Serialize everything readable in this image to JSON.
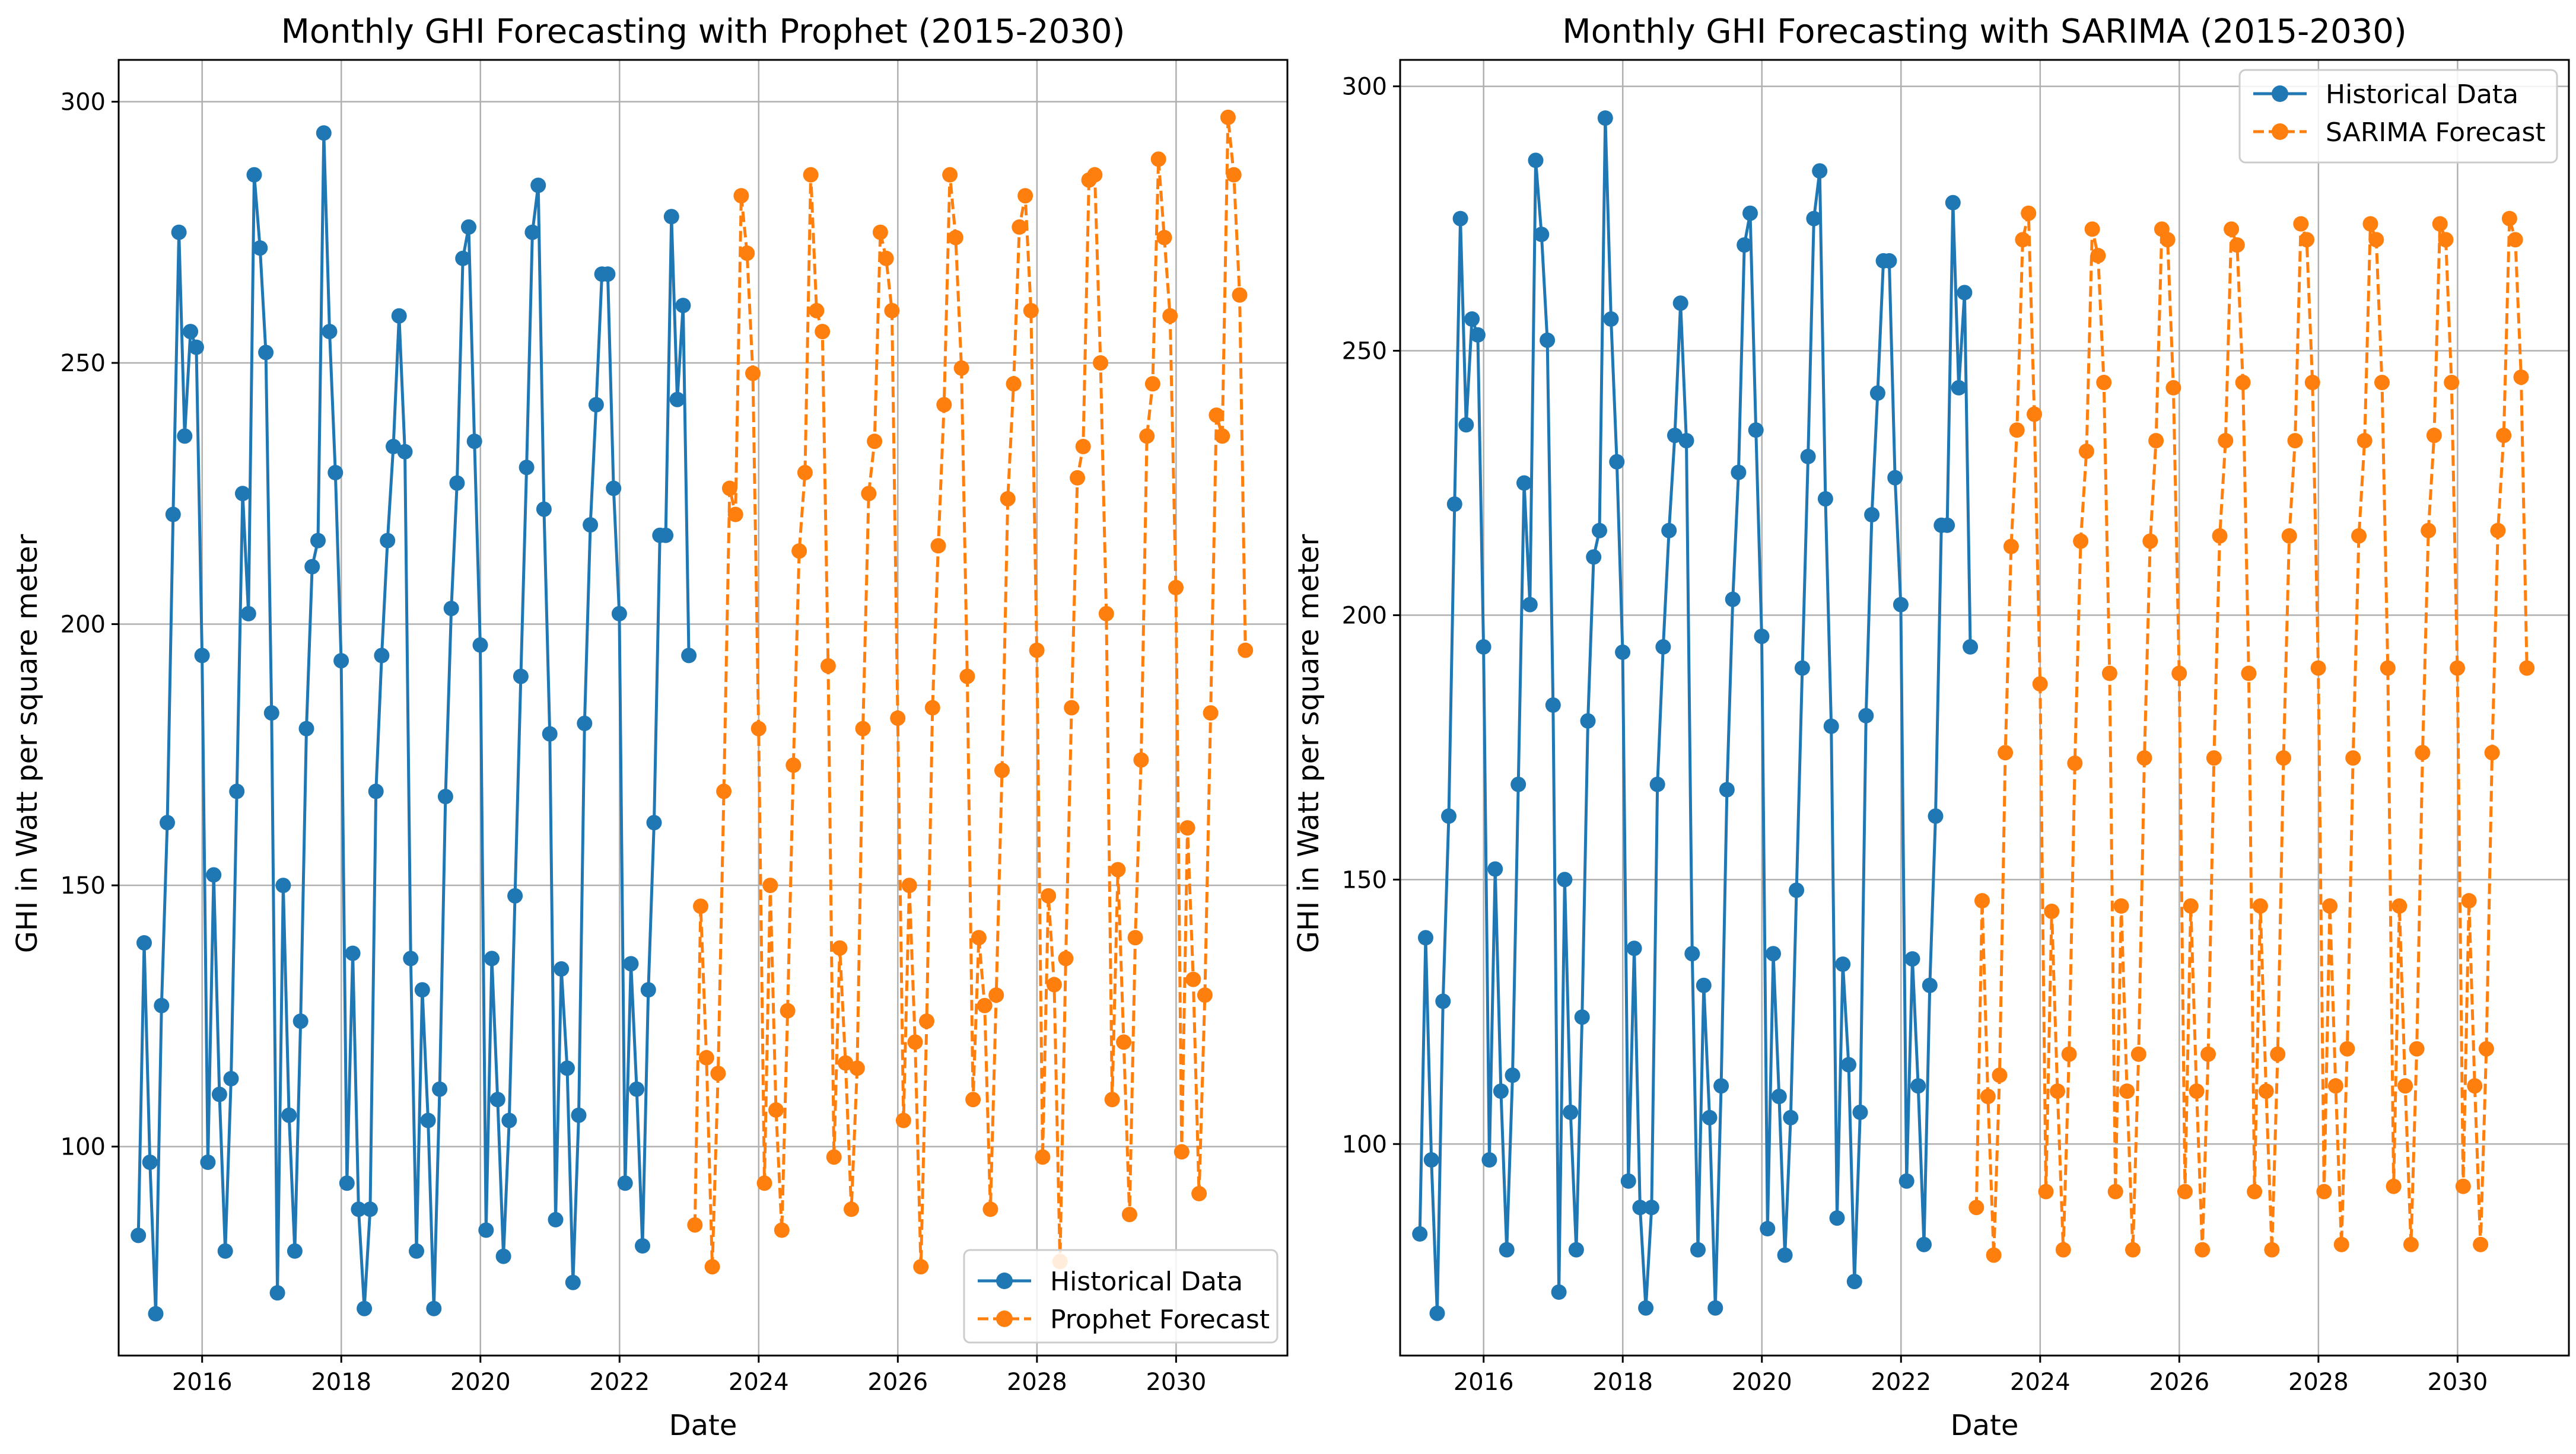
{
  "chart_data": [
    {
      "type": "line",
      "title": "Monthly GHI Forecasting with Prophet (2015-2030)",
      "xlabel": "Date",
      "ylabel": "GHI in Watt per square meter",
      "xlim": [
        2014.8,
        2031.6
      ],
      "ylim": [
        60,
        308
      ],
      "xticks": [
        2016,
        2018,
        2020,
        2022,
        2024,
        2026,
        2028,
        2030
      ],
      "yticks": [
        100,
        150,
        200,
        250,
        300
      ],
      "grid": true,
      "legend_position": "lower-right",
      "series": [
        {
          "name": "Historical Data",
          "style": "solid",
          "color": "#1f77b4",
          "start_year": 2015.083,
          "step": 0.0833,
          "values": [
            83,
            139,
            97,
            68,
            127,
            162,
            221,
            275,
            236,
            256,
            253,
            194,
            97,
            152,
            110,
            80,
            113,
            168,
            225,
            202,
            286,
            272,
            252,
            183,
            72,
            150,
            106,
            80,
            124,
            180,
            211,
            216,
            294,
            256,
            229,
            193,
            93,
            137,
            88,
            69,
            88,
            168,
            194,
            216,
            234,
            259,
            233,
            136,
            80,
            130,
            105,
            69,
            111,
            167,
            203,
            227,
            270,
            276,
            235,
            196,
            84,
            136,
            109,
            79,
            105,
            148,
            190,
            230,
            275,
            284,
            222,
            179,
            86,
            134,
            115,
            74,
            106,
            181,
            219,
            242,
            267,
            267,
            226,
            202,
            93,
            135,
            111,
            81,
            130,
            162,
            217,
            217,
            278,
            243,
            261,
            194
          ]
        },
        {
          "name": "Prophet Forecast",
          "style": "dashed",
          "color": "#ff7f0e",
          "start_year": 2023.083,
          "step": 0.0833,
          "values": [
            85,
            146,
            117,
            77,
            114,
            168,
            226,
            221,
            282,
            271,
            248,
            180,
            93,
            150,
            107,
            84,
            126,
            173,
            214,
            229,
            286,
            260,
            256,
            192,
            98,
            138,
            116,
            88,
            115,
            180,
            225,
            235,
            275,
            270,
            260,
            182,
            105,
            150,
            120,
            77,
            124,
            184,
            215,
            242,
            286,
            274,
            249,
            190,
            109,
            140,
            127,
            88,
            129,
            172,
            224,
            246,
            276,
            282,
            260,
            195,
            98,
            148,
            131,
            78,
            136,
            184,
            228,
            234,
            285,
            286,
            250,
            202,
            109,
            153,
            120,
            87,
            140,
            174,
            236,
            246,
            289,
            274,
            259,
            207,
            99,
            161,
            132,
            91,
            129,
            183,
            240,
            236,
            297,
            286,
            263,
            195
          ]
        }
      ],
      "legend": [
        "Historical Data",
        "Prophet Forecast"
      ]
    },
    {
      "type": "line",
      "title": "Monthly GHI Forecasting with SARIMA (2015-2030)",
      "xlabel": "Date",
      "ylabel": "GHI in Watt per square meter",
      "xlim": [
        2014.8,
        2031.6
      ],
      "ylim": [
        60,
        305
      ],
      "xticks": [
        2016,
        2018,
        2020,
        2022,
        2024,
        2026,
        2028,
        2030
      ],
      "yticks": [
        100,
        150,
        200,
        250,
        300
      ],
      "grid": true,
      "legend_position": "upper-right",
      "series": [
        {
          "name": "Historical Data",
          "style": "solid",
          "color": "#1f77b4",
          "start_year": 2015.083,
          "step": 0.0833,
          "values": [
            83,
            139,
            97,
            68,
            127,
            162,
            221,
            275,
            236,
            256,
            253,
            194,
            97,
            152,
            110,
            80,
            113,
            168,
            225,
            202,
            286,
            272,
            252,
            183,
            72,
            150,
            106,
            80,
            124,
            180,
            211,
            216,
            294,
            256,
            229,
            193,
            93,
            137,
            88,
            69,
            88,
            168,
            194,
            216,
            234,
            259,
            233,
            136,
            80,
            130,
            105,
            69,
            111,
            167,
            203,
            227,
            270,
            276,
            235,
            196,
            84,
            136,
            109,
            79,
            105,
            148,
            190,
            230,
            275,
            284,
            222,
            179,
            86,
            134,
            115,
            74,
            106,
            181,
            219,
            242,
            267,
            267,
            226,
            202,
            93,
            135,
            111,
            81,
            130,
            162,
            217,
            217,
            278,
            243,
            261,
            194
          ]
        },
        {
          "name": "SARIMA Forecast",
          "style": "dashed",
          "color": "#ff7f0e",
          "start_year": 2023.083,
          "step": 0.0833,
          "values": [
            88,
            146,
            109,
            79,
            113,
            174,
            213,
            235,
            271,
            276,
            238,
            187,
            91,
            144,
            110,
            80,
            117,
            172,
            214,
            231,
            273,
            268,
            244,
            189,
            91,
            145,
            110,
            80,
            117,
            173,
            214,
            233,
            273,
            271,
            243,
            189,
            91,
            145,
            110,
            80,
            117,
            173,
            215,
            233,
            273,
            270,
            244,
            189,
            91,
            145,
            110,
            80,
            117,
            173,
            215,
            233,
            274,
            271,
            244,
            190,
            91,
            145,
            111,
            81,
            118,
            173,
            215,
            233,
            274,
            271,
            244,
            190,
            92,
            145,
            111,
            81,
            118,
            174,
            216,
            234,
            274,
            271,
            244,
            190,
            92,
            146,
            111,
            81,
            118,
            174,
            216,
            234,
            275,
            271,
            245,
            190
          ]
        }
      ],
      "legend": [
        "Historical Data",
        "SARIMA Forecast"
      ]
    }
  ]
}
